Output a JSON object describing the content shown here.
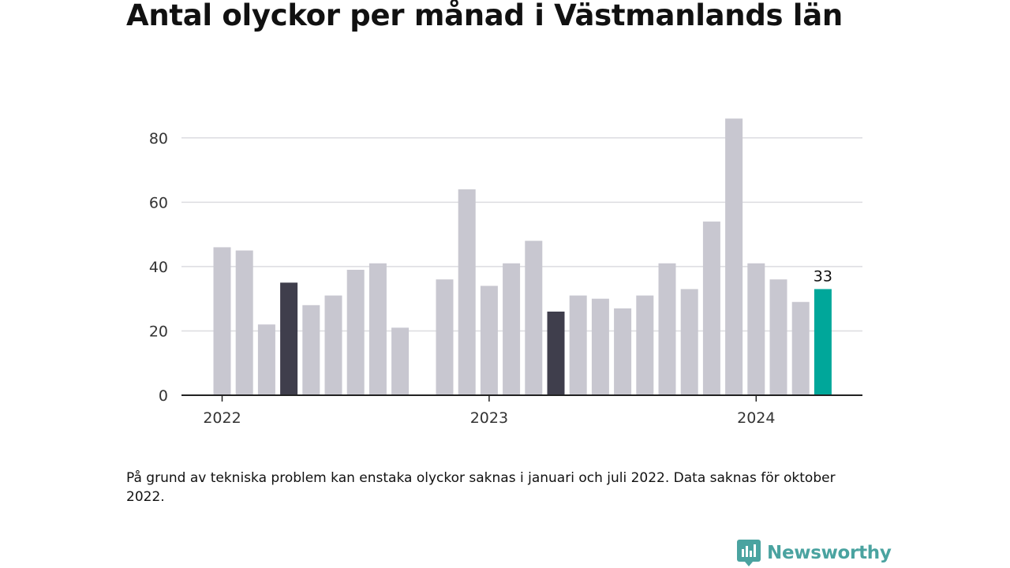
{
  "title": "Antal olyckor per månad i Västmanlands län",
  "footnote": "På grund av tekniska problem kan enstaka olyckor saknas i januari och juli 2022. Data saknas för oktober 2022.",
  "brand": {
    "name": "Newsworthy",
    "icon": "newsworthy-logo-icon",
    "color": "#4aa3a0"
  },
  "colors": {
    "default": "#c8c7d0",
    "highlight_dark": "#3f3e4c",
    "highlight_current": "#00a79a",
    "grid": "#dcdce0",
    "axis": "#222222"
  },
  "chart_data": {
    "type": "bar",
    "title": "Antal olyckor per månad i Västmanlands län",
    "xlabel": "",
    "ylabel": "",
    "ylim": [
      0,
      90
    ],
    "yticks": [
      0,
      20,
      40,
      60,
      80
    ],
    "grid": true,
    "x_tick_labels": [
      {
        "label": "2022",
        "at": "2022-01"
      },
      {
        "label": "2023",
        "at": "2023-01"
      },
      {
        "label": "2024",
        "at": "2024-01"
      }
    ],
    "categories": [
      "2022-01",
      "2022-02",
      "2022-03",
      "2022-04",
      "2022-05",
      "2022-06",
      "2022-07",
      "2022-08",
      "2022-09",
      "2022-10",
      "2022-11",
      "2022-12",
      "2023-01",
      "2023-02",
      "2023-03",
      "2023-04",
      "2023-05",
      "2023-06",
      "2023-07",
      "2023-08",
      "2023-09",
      "2023-10",
      "2023-11",
      "2023-12",
      "2024-01",
      "2024-02",
      "2024-03",
      "2024-04"
    ],
    "values": [
      46,
      45,
      22,
      35,
      28,
      31,
      39,
      41,
      21,
      null,
      36,
      64,
      34,
      41,
      48,
      26,
      31,
      30,
      27,
      31,
      41,
      33,
      54,
      86,
      41,
      36,
      29,
      33
    ],
    "highlight": {
      "2022-04": "dark",
      "2023-04": "dark",
      "2024-04": "current"
    },
    "data_labels": [
      {
        "category": "2024-04",
        "value": 33,
        "text": "33"
      }
    ]
  }
}
